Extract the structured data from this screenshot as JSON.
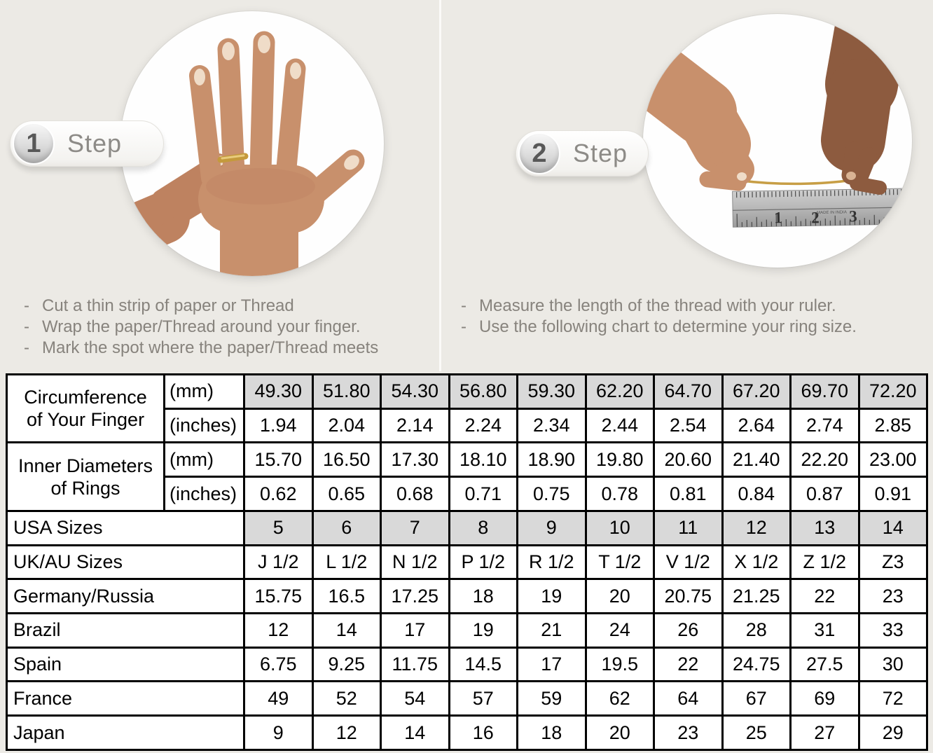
{
  "page": {
    "background": "#ECEAE5",
    "bullet": "-"
  },
  "steps": [
    {
      "number": "1",
      "label": "Step",
      "instructions": [
        "Cut a thin strip of paper or Thread",
        "Wrap the paper/Thread around your finger.",
        "Mark the spot where the paper/Thread meets"
      ]
    },
    {
      "number": "2",
      "label": "Step",
      "instructions": [
        "Measure the length of the thread with your ruler.",
        "Use the following chart to determine your ring size."
      ]
    }
  ],
  "illustrations": {
    "step1_photo": "hand-with-gold-ring-being-fitted",
    "step2_photo": "two-hands-holding-thread-over-ruler",
    "ruler_numbers": [
      "1",
      "2",
      "3"
    ],
    "ruler_text": "MADE IN INDIA",
    "skin_light": "#C8906C",
    "skin_dark": "#8D5B3F",
    "gold": "#C49A3C"
  },
  "table": {
    "border_color": "#000000",
    "shaded_color": "#D9D9D9",
    "header_groups": [
      {
        "label_lines": [
          "Circumference",
          "of Your Finger"
        ],
        "rows": [
          {
            "unit": "(mm)",
            "shaded": true,
            "values": [
              "49.30",
              "51.80",
              "54.30",
              "56.80",
              "59.30",
              "62.20",
              "64.70",
              "67.20",
              "69.70",
              "72.20"
            ]
          },
          {
            "unit": "(inches)",
            "shaded": false,
            "values": [
              "1.94",
              "2.04",
              "2.14",
              "2.24",
              "2.34",
              "2.44",
              "2.54",
              "2.64",
              "2.74",
              "2.85"
            ]
          }
        ]
      },
      {
        "label_lines": [
          "Inner Diameters",
          "of Rings"
        ],
        "rows": [
          {
            "unit": "(mm)",
            "shaded": false,
            "values": [
              "15.70",
              "16.50",
              "17.30",
              "18.10",
              "18.90",
              "19.80",
              "20.60",
              "21.40",
              "22.20",
              "23.00"
            ]
          },
          {
            "unit": "(inches)",
            "shaded": false,
            "values": [
              "0.62",
              "0.65",
              "0.68",
              "0.71",
              "0.75",
              "0.78",
              "0.81",
              "0.84",
              "0.87",
              "0.91"
            ]
          }
        ]
      }
    ],
    "size_rows": [
      {
        "label": "USA Sizes",
        "shaded": true,
        "values": [
          "5",
          "6",
          "7",
          "8",
          "9",
          "10",
          "11",
          "12",
          "13",
          "14"
        ]
      },
      {
        "label": "UK/AU Sizes",
        "shaded": false,
        "values": [
          "J 1/2",
          "L 1/2",
          "N 1/2",
          "P 1/2",
          "R 1/2",
          "T 1/2",
          "V 1/2",
          "X 1/2",
          "Z 1/2",
          "Z3"
        ]
      },
      {
        "label": "Germany/Russia",
        "shaded": false,
        "values": [
          "15.75",
          "16.5",
          "17.25",
          "18",
          "19",
          "20",
          "20.75",
          "21.25",
          "22",
          "23"
        ]
      },
      {
        "label": "Brazil",
        "shaded": false,
        "values": [
          "12",
          "14",
          "17",
          "19",
          "21",
          "24",
          "26",
          "28",
          "31",
          "33"
        ]
      },
      {
        "label": "Spain",
        "shaded": false,
        "values": [
          "6.75",
          "9.25",
          "11.75",
          "14.5",
          "17",
          "19.5",
          "22",
          "24.75",
          "27.5",
          "30"
        ]
      },
      {
        "label": "France",
        "shaded": false,
        "values": [
          "49",
          "52",
          "54",
          "57",
          "59",
          "62",
          "64",
          "67",
          "69",
          "72"
        ]
      },
      {
        "label": "Japan",
        "shaded": false,
        "values": [
          "9",
          "12",
          "14",
          "16",
          "18",
          "20",
          "23",
          "25",
          "27",
          "29"
        ]
      }
    ]
  }
}
